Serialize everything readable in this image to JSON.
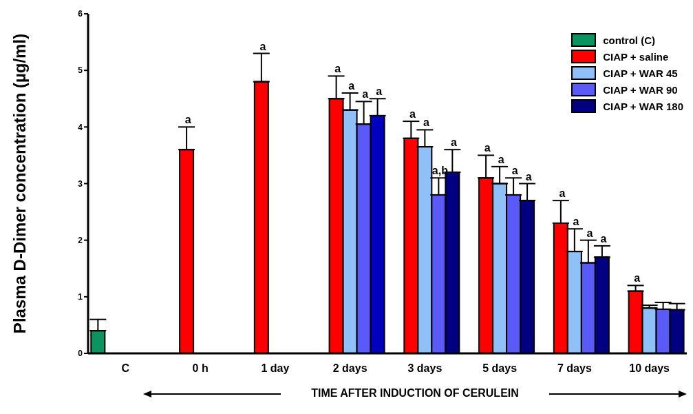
{
  "chart_data": {
    "type": "bar",
    "ylabel": "Plasma D-Dimer concentration (µg/ml)",
    "xlabel": "TIME AFTER INDUCTION OF CERULEIN",
    "categories": [
      "C",
      "0 h",
      "1 day",
      "2 days",
      "3 days",
      "5 days",
      "7 days",
      "10 days"
    ],
    "series": [
      {
        "name": "control (C)",
        "color": "#0a9460",
        "values": [
          0.4,
          null,
          null,
          null,
          null,
          null,
          null,
          null
        ],
        "errors": [
          0.2,
          null,
          null,
          null,
          null,
          null,
          null,
          null
        ]
      },
      {
        "name": "CIAP + saline",
        "color": "#ff0000",
        "values": [
          null,
          3.6,
          4.8,
          4.5,
          3.8,
          3.1,
          2.3,
          1.1
        ],
        "errors": [
          null,
          0.4,
          0.5,
          0.4,
          0.3,
          0.4,
          0.4,
          0.1
        ],
        "value_labels": [
          null,
          "a",
          "a",
          "a",
          "a",
          "a",
          "a",
          "a"
        ]
      },
      {
        "name": "CIAP + WAR 45",
        "color": "#90c0f8",
        "values": [
          null,
          null,
          null,
          4.3,
          3.65,
          3.0,
          1.8,
          0.8
        ],
        "errors": [
          null,
          null,
          null,
          0.3,
          0.3,
          0.3,
          0.4,
          0.05
        ],
        "value_labels": [
          null,
          null,
          null,
          "a",
          "a",
          "a",
          "a",
          null
        ]
      },
      {
        "name": "CIAP + WAR 90",
        "color": "#5a5af8",
        "values": [
          null,
          null,
          null,
          4.05,
          2.8,
          2.8,
          1.6,
          0.78
        ],
        "errors": [
          null,
          null,
          null,
          0.4,
          0.3,
          0.3,
          0.4,
          0.12
        ],
        "value_labels": [
          null,
          null,
          null,
          "a",
          "a,b",
          "a",
          "a",
          null
        ]
      },
      {
        "name": "CIAP + WAR 180",
        "color": "#000080",
        "colors": [
          null,
          null,
          null,
          "#0000c0",
          "#000080",
          "#000080",
          "#000080",
          "#000080"
        ],
        "values": [
          null,
          null,
          null,
          4.2,
          3.2,
          2.7,
          1.7,
          0.77
        ],
        "errors": [
          null,
          null,
          null,
          0.3,
          0.4,
          0.3,
          0.2,
          0.11
        ],
        "value_labels": [
          null,
          null,
          null,
          "a",
          "a",
          "a",
          "a",
          null
        ]
      }
    ],
    "ylim": [
      0,
      6
    ],
    "yticks": [
      0,
      1,
      2,
      3,
      4,
      5,
      6
    ],
    "grid": false,
    "legend": "top right"
  }
}
